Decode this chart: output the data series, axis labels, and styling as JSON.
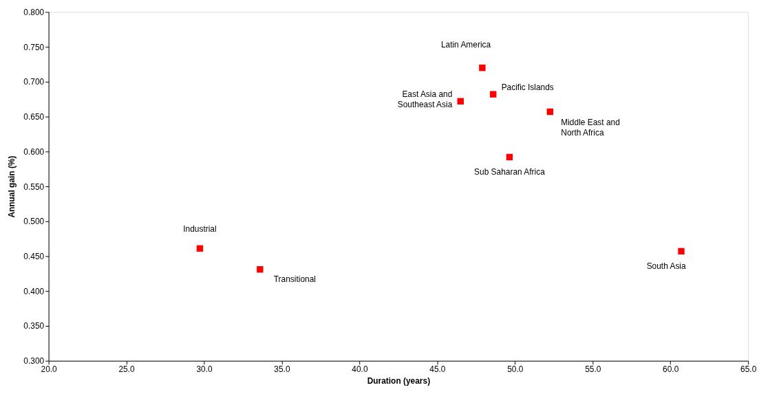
{
  "chart_data": {
    "type": "scatter",
    "xlabel": "Duration (years)",
    "ylabel": "Annual gain (%)",
    "x": [
      29.73,
      33.6,
      46.5,
      47.9,
      48.6,
      49.65,
      52.26,
      60.7
    ],
    "series": [
      {
        "color": "#ff0000",
        "values": [
          0.461,
          0.431,
          0.672,
          0.72,
          0.682,
          0.592,
          0.657,
          0.457
        ]
      }
    ],
    "marker": "square",
    "xlim": [
      20,
      65
    ],
    "xticks": [
      {
        "value": 20,
        "label": "20.0"
      },
      {
        "value": 25,
        "label": "25.0"
      },
      {
        "value": 30,
        "label": "30.0"
      },
      {
        "value": 35,
        "label": "35.0"
      },
      {
        "value": 40,
        "label": "40.0"
      },
      {
        "value": 45,
        "label": "45.0"
      },
      {
        "value": 50,
        "label": "50.0"
      },
      {
        "value": 55,
        "label": "55.0"
      },
      {
        "value": 60,
        "label": "60.0"
      },
      {
        "value": 65,
        "label": "65.0"
      }
    ],
    "ylim": [
      0.3,
      0.8
    ],
    "yticks": [
      {
        "value": 0.3,
        "label": "0.300"
      },
      {
        "value": 0.35,
        "label": "0.350"
      },
      {
        "value": 0.4,
        "label": "0.400"
      },
      {
        "value": 0.45,
        "label": "0.450"
      },
      {
        "value": 0.5,
        "label": "0.500"
      },
      {
        "value": 0.55,
        "label": "0.550"
      },
      {
        "value": 0.6,
        "label": "0.600"
      },
      {
        "value": 0.65,
        "label": "0.650"
      },
      {
        "value": 0.7,
        "label": "0.700"
      },
      {
        "value": 0.75,
        "label": "0.750"
      },
      {
        "value": 0.8,
        "label": "0.800"
      }
    ],
    "grid": false,
    "annotations": [
      {
        "text": "Industrial",
        "x": 29.73,
        "y": 0.461
      },
      {
        "text": "Transitional",
        "x": 33.6,
        "y": 0.431
      },
      {
        "text": "East Asia and\nSoutheast Asia",
        "x": 46.5,
        "y": 0.672
      },
      {
        "text": "Latin America",
        "x": 47.9,
        "y": 0.72
      },
      {
        "text": "Pacific Islands",
        "x": 48.6,
        "y": 0.682
      },
      {
        "text": "Sub Saharan Africa",
        "x": 49.65,
        "y": 0.592
      },
      {
        "text": "Middle East and\nNorth Africa",
        "x": 52.26,
        "y": 0.657
      },
      {
        "text": "South Asia",
        "x": 60.7,
        "y": 0.457
      }
    ]
  }
}
